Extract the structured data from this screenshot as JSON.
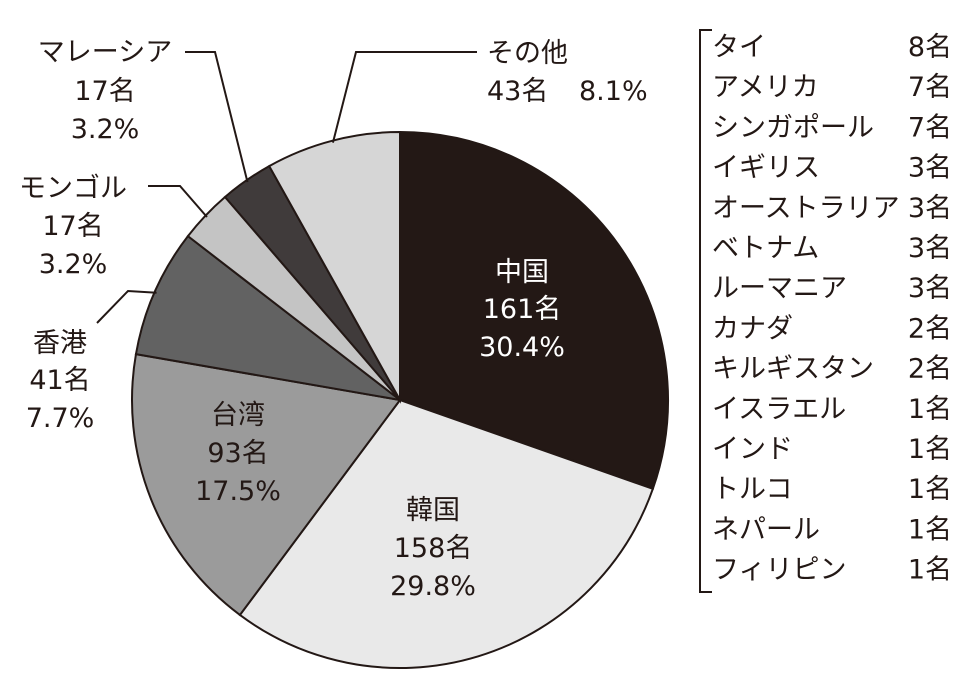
{
  "chart_data": {
    "type": "pie",
    "title": "",
    "unit_suffix": "名",
    "slices": [
      {
        "name": "中国",
        "count_label": "161名",
        "percent_label": "30.4%",
        "value": 161,
        "percent": 30.4,
        "color": "#231815"
      },
      {
        "name": "韓国",
        "count_label": "158名",
        "percent_label": "29.8%",
        "value": 158,
        "percent": 29.8,
        "color": "#e9e9e9"
      },
      {
        "name": "台湾",
        "count_label": "93名",
        "percent_label": "17.5%",
        "value": 93,
        "percent": 17.5,
        "color": "#9b9b9b"
      },
      {
        "name": "香港",
        "count_label": "41名",
        "percent_label": "7.7%",
        "value": 41,
        "percent": 7.7,
        "color": "#626262"
      },
      {
        "name": "モンゴル",
        "count_label": "17名",
        "percent_label": "3.2%",
        "value": 17,
        "percent": 3.2,
        "color": "#c4c4c4"
      },
      {
        "name": "マレーシア",
        "count_label": "17名",
        "percent_label": "3.2%",
        "value": 17,
        "percent": 3.2,
        "color": "#403b3b"
      },
      {
        "name": "その他",
        "count_label": "43名",
        "percent_label": "8.1%",
        "value": 43,
        "percent": 8.1,
        "color": "#d6d6d6"
      }
    ],
    "other_breakdown": [
      {
        "name": "タイ",
        "count": "8名"
      },
      {
        "name": "アメリカ",
        "count": "7名"
      },
      {
        "name": "シンガポール",
        "count": "7名"
      },
      {
        "name": "イギリス",
        "count": "3名"
      },
      {
        "name": "オーストラリア",
        "count": "3名"
      },
      {
        "name": "ベトナム",
        "count": "3名"
      },
      {
        "name": "ルーマニア",
        "count": "3名"
      },
      {
        "name": "カナダ",
        "count": "2名"
      },
      {
        "name": "キルギスタン",
        "count": "2名"
      },
      {
        "name": "イスラエル",
        "count": "1名"
      },
      {
        "name": "インド",
        "count": "1名"
      },
      {
        "name": "トルコ",
        "count": "1名"
      },
      {
        "name": "ネパール",
        "count": "1名"
      },
      {
        "name": "フィリピン",
        "count": "1名"
      }
    ]
  }
}
